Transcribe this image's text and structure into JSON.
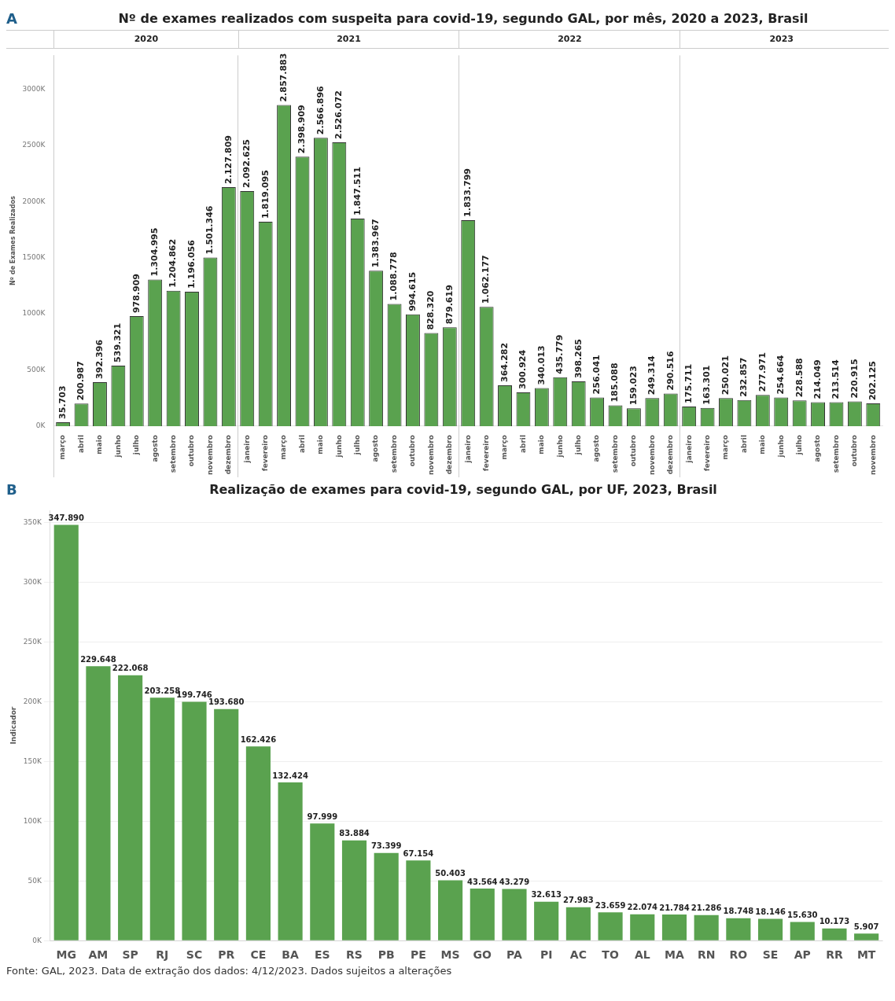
{
  "chart_data": [
    {
      "type": "bar",
      "title": "Nº de exames realizados com suspeita para covid-19, segundo GAL, por mês, 2020 a 2023, Brasil",
      "ylabel": "Nº de Exames Realizados",
      "color": "#5aa24f",
      "legend": false,
      "grid": false,
      "categories": [
        "março",
        "abril",
        "maio",
        "junho",
        "julho",
        "agosto",
        "setembro",
        "outubro",
        "novembro",
        "dezembro",
        "janeiro",
        "fevereiro",
        "março",
        "abril",
        "maio",
        "junho",
        "julho",
        "agosto",
        "setembro",
        "outubro",
        "novembro",
        "dezembro",
        "janeiro",
        "fevereiro",
        "março",
        "abril",
        "maio",
        "junho",
        "julho",
        "agosto",
        "setembro",
        "outubro",
        "novembro",
        "dezembro",
        "janeiro",
        "fevereiro",
        "março",
        "abril",
        "maio",
        "junho",
        "julho",
        "agosto",
        "setembro",
        "outubro",
        "novembro"
      ],
      "values": [
        35703,
        200987,
        392396,
        539321,
        978909,
        1304995,
        1204862,
        1196056,
        1501346,
        2127809,
        2092625,
        1819095,
        2857883,
        2398909,
        2566896,
        2526072,
        1847511,
        1383967,
        1088778,
        994615,
        828320,
        879619,
        1833799,
        1062177,
        364282,
        300924,
        340013,
        435779,
        398265,
        256041,
        185088,
        159023,
        249314,
        290516,
        175711,
        163301,
        250021,
        232857,
        277971,
        254664,
        228588,
        214049,
        213514,
        220915,
        202125
      ],
      "value_labels": [
        "35.703",
        "200.987",
        "392.396",
        "539.321",
        "978.909",
        "1.304.995",
        "1.204.862",
        "1.196.056",
        "1.501.346",
        "2.127.809",
        "2.092.625",
        "1.819.095",
        "2.857.883",
        "2.398.909",
        "2.566.896",
        "2.526.072",
        "1.847.511",
        "1.383.967",
        "1.088.778",
        "994.615",
        "828.320",
        "879.619",
        "1.833.799",
        "1.062.177",
        "364.282",
        "300.924",
        "340.013",
        "435.779",
        "398.265",
        "256.041",
        "185.088",
        "159.023",
        "249.314",
        "290.516",
        "175.711",
        "163.301",
        "250.021",
        "232.857",
        "277.971",
        "254.664",
        "228.588",
        "214.049",
        "213.514",
        "220.915",
        "202.125"
      ],
      "ylim": [
        0,
        3300000
      ],
      "yticks": [
        {
          "value": 0,
          "label": "0K"
        },
        {
          "value": 500000,
          "label": "500K"
        },
        {
          "value": 1000000,
          "label": "1000K"
        },
        {
          "value": 1500000,
          "label": "1500K"
        },
        {
          "value": 2000000,
          "label": "2000K"
        },
        {
          "value": 2500000,
          "label": "2500K"
        },
        {
          "value": 3000000,
          "label": "3000K"
        }
      ],
      "annotations": [
        "A",
        "2020",
        "2021",
        "2022",
        "2023"
      ]
    },
    {
      "type": "bar",
      "title": "Realização de exames para covid-19, segundo GAL, por UF, 2023, Brasil",
      "ylabel": "Indicador",
      "color": "#5aa24f",
      "legend": false,
      "grid": "y",
      "categories": [
        "MG",
        "AM",
        "SP",
        "RJ",
        "SC",
        "PR",
        "CE",
        "BA",
        "ES",
        "RS",
        "PB",
        "PE",
        "MS",
        "GO",
        "PA",
        "PI",
        "AC",
        "TO",
        "AL",
        "MA",
        "RN",
        "RO",
        "SE",
        "AP",
        "RR",
        "MT"
      ],
      "values": [
        347890,
        229648,
        222068,
        203258,
        199746,
        193680,
        162426,
        132424,
        97999,
        83884,
        73399,
        67154,
        50403,
        43564,
        43279,
        32613,
        27983,
        23659,
        22074,
        21784,
        21286,
        18748,
        18146,
        15630,
        10173,
        5907
      ],
      "value_labels": [
        "347.890",
        "229.648",
        "222.068",
        "203.258",
        "199.746",
        "193.680",
        "162.426",
        "132.424",
        "97.999",
        "83.884",
        "73.399",
        "67.154",
        "50.403",
        "43.564",
        "43.279",
        "32.613",
        "27.983",
        "23.659",
        "22.074",
        "21.784",
        "21.286",
        "18.748",
        "18.146",
        "15.630",
        "10.173",
        "5.907"
      ],
      "ylim": [
        0,
        360000
      ],
      "yticks": [
        {
          "value": 0,
          "label": "0K"
        },
        {
          "value": 50000,
          "label": "50K"
        },
        {
          "value": 100000,
          "label": "100K"
        },
        {
          "value": 150000,
          "label": "150K"
        },
        {
          "value": 200000,
          "label": "200K"
        },
        {
          "value": 250000,
          "label": "250K"
        },
        {
          "value": 300000,
          "label": "300K"
        },
        {
          "value": 350000,
          "label": "350K"
        }
      ],
      "annotations": [
        "B",
        "Fonte: GAL, 2023. Data de extração dos dados: 4/12/2023. Dados sujeitos a alterações"
      ]
    }
  ]
}
